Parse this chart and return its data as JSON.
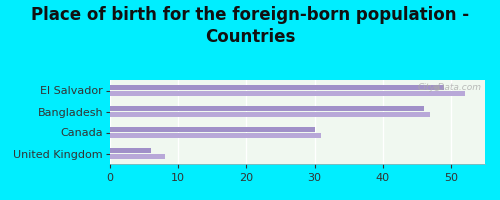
{
  "title": "Place of birth for the foreign-born population -\nCountries",
  "categories": [
    "El Salvador",
    "Bangladesh",
    "Canada",
    "United Kingdom"
  ],
  "values1": [
    52,
    47,
    31,
    8
  ],
  "values2": [
    49,
    46,
    30,
    6
  ],
  "bar_color1": "#b8a8d8",
  "bar_color2": "#a090c8",
  "bg_color_outer": "#00eeff",
  "bg_color_inner_left": "#d8ede8",
  "bg_color_inner_right": "#f0f8f0",
  "xlim": [
    0,
    55
  ],
  "xticks": [
    0,
    10,
    20,
    30,
    40,
    50
  ],
  "watermark": "City-Data.com",
  "title_fontsize": 12,
  "tick_fontsize": 8,
  "label_fontsize": 8
}
